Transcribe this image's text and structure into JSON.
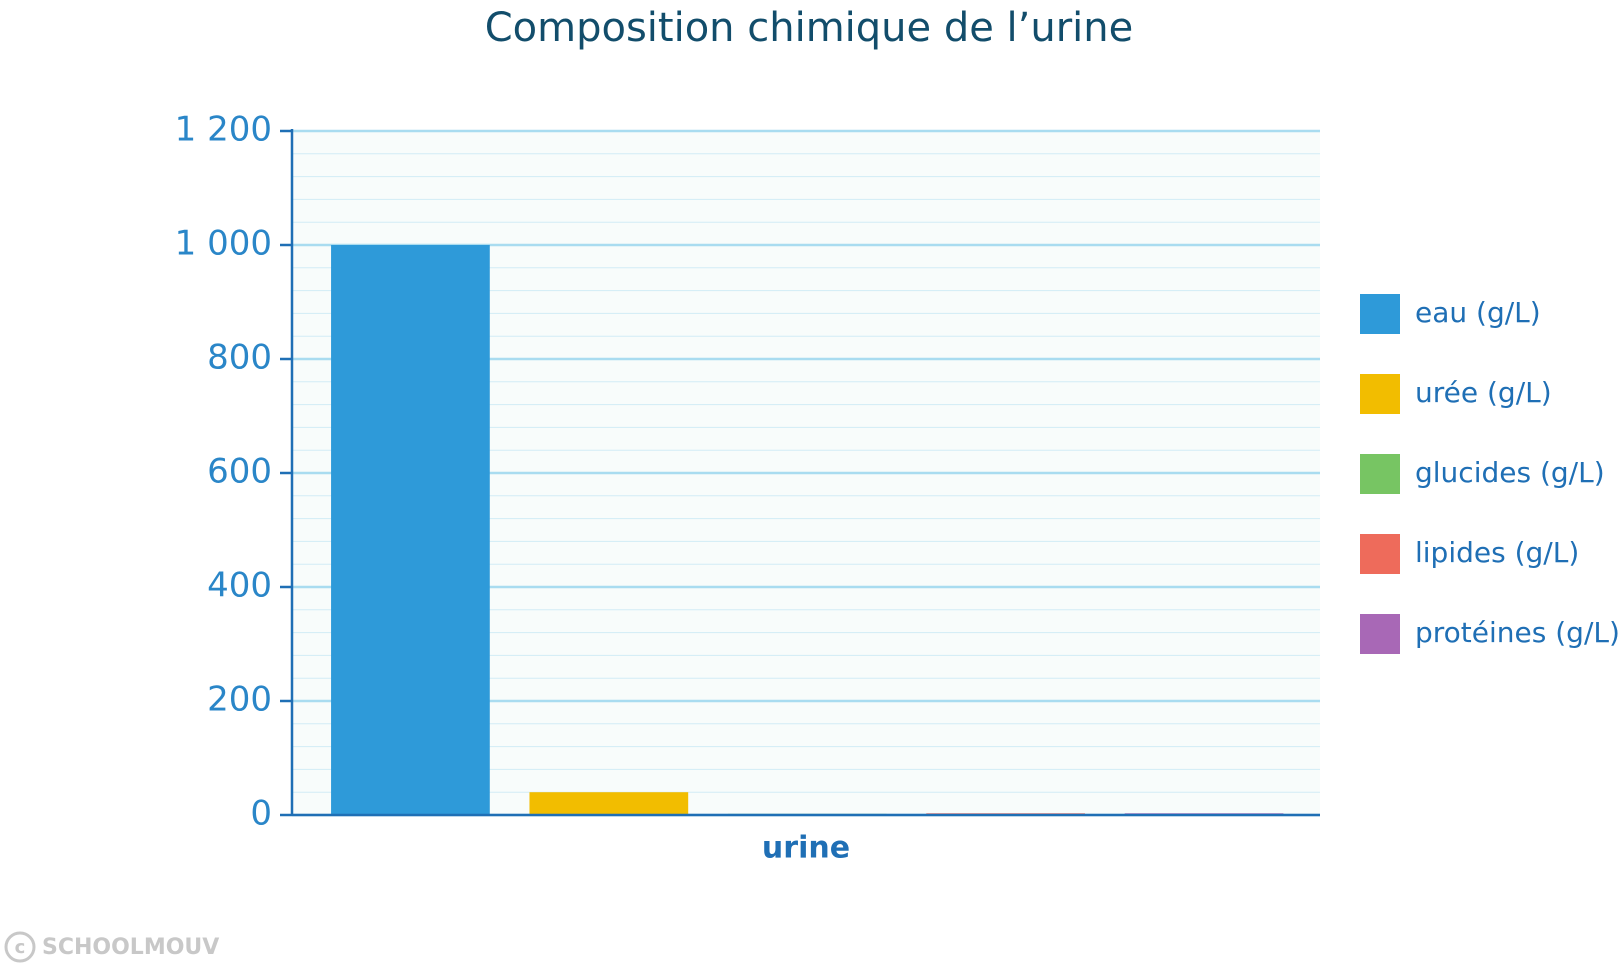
{
  "chart_data": {
    "type": "bar",
    "title": "Composition chimique de l’urine",
    "categories": [
      "urine"
    ],
    "series": [
      {
        "name": "eau (g/L)",
        "color": "#2e9ad9",
        "values": [
          1000
        ]
      },
      {
        "name": "urée (g/L)",
        "color": "#f2bd00",
        "values": [
          40
        ]
      },
      {
        "name": "glucides (g/L)",
        "color": "#77c563",
        "values": [
          2
        ]
      },
      {
        "name": "lipides (g/L)",
        "color": "#ee6b5b",
        "values": [
          3
        ]
      },
      {
        "name": "protéines (g/L)",
        "color": "#a868b6",
        "values": [
          3
        ]
      }
    ],
    "ylim": [
      0,
      1200
    ],
    "yticks": [
      0,
      200,
      400,
      600,
      800,
      {
        "value": 1000,
        "label": "1 000"
      },
      {
        "value": 1200,
        "label": "1 200"
      }
    ],
    "yminorticks": [
      40,
      80,
      120,
      160,
      240,
      280,
      320,
      360,
      440,
      480,
      520,
      560,
      640,
      680,
      720,
      760,
      840,
      880,
      920,
      960,
      1040,
      1080,
      1120,
      1160
    ],
    "grid": true,
    "legend": "right",
    "watermark": "SCHOOLMOUV"
  }
}
